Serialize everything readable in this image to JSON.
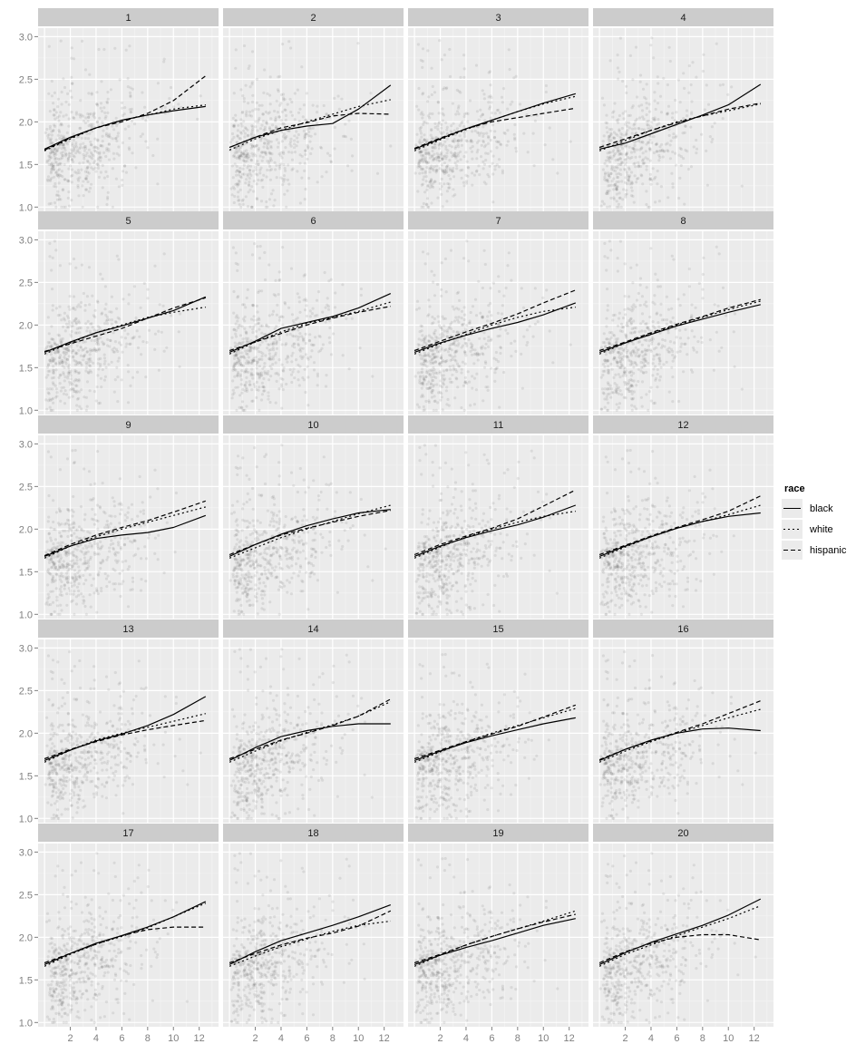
{
  "chart_data": {
    "type": "scatter",
    "facets": [
      "1",
      "2",
      "3",
      "4",
      "5",
      "6",
      "7",
      "8",
      "9",
      "10",
      "11",
      "12",
      "13",
      "14",
      "15",
      "16",
      "17",
      "18",
      "19",
      "20"
    ],
    "xlim": [
      -0.5,
      13.5
    ],
    "ylim": [
      0.95,
      3.1
    ],
    "x_ticks": [
      2,
      4,
      6,
      8,
      10,
      12
    ],
    "y_ticks": [
      "1.0",
      "1.5",
      "2.0",
      "2.5",
      "3.0"
    ],
    "grid": true,
    "legend": {
      "title": "race",
      "position": "right",
      "entries": [
        {
          "name": "black",
          "linetype": "solid"
        },
        {
          "name": "white",
          "linetype": "dotted"
        },
        {
          "name": "hispanic",
          "linetype": "dashed"
        }
      ]
    },
    "points": {
      "x_range": [
        0,
        12.5
      ],
      "y_range": [
        1.0,
        3.0
      ],
      "color": "#000000",
      "alpha": 0.08
    },
    "smooth_x": [
      0,
      2,
      4,
      6,
      8,
      10,
      12.5
    ],
    "panels": [
      {
        "facet": "1",
        "black": [
          1.68,
          1.82,
          1.93,
          2.02,
          2.08,
          2.13,
          2.18
        ],
        "white": [
          1.66,
          1.8,
          1.93,
          2.02,
          2.08,
          2.15,
          2.2
        ],
        "hispanic": [
          1.67,
          1.81,
          1.93,
          2.0,
          2.1,
          2.25,
          2.54
        ]
      },
      {
        "facet": "2",
        "black": [
          1.7,
          1.82,
          1.9,
          1.95,
          1.98,
          2.15,
          2.43
        ],
        "white": [
          1.67,
          1.8,
          1.9,
          2.0,
          2.09,
          2.18,
          2.26
        ],
        "hispanic": [
          1.7,
          1.82,
          1.93,
          1.99,
          2.07,
          2.1,
          2.09
        ]
      },
      {
        "facet": "3",
        "black": [
          1.68,
          1.8,
          1.92,
          2.02,
          2.12,
          2.22,
          2.33
        ],
        "white": [
          1.66,
          1.79,
          1.91,
          2.02,
          2.12,
          2.21,
          2.3
        ],
        "hispanic": [
          1.69,
          1.81,
          1.92,
          2.0,
          2.05,
          2.1,
          2.16
        ]
      },
      {
        "facet": "4",
        "black": [
          1.68,
          1.75,
          1.86,
          1.97,
          2.08,
          2.2,
          2.44
        ],
        "white": [
          1.66,
          1.78,
          1.9,
          2.0,
          2.07,
          2.13,
          2.21
        ],
        "hispanic": [
          1.7,
          1.8,
          1.9,
          1.99,
          2.07,
          2.15,
          2.22
        ]
      },
      {
        "facet": "5",
        "black": [
          1.68,
          1.8,
          1.91,
          1.99,
          2.08,
          2.17,
          2.33
        ],
        "white": [
          1.66,
          1.79,
          1.91,
          2.0,
          2.09,
          2.15,
          2.21
        ],
        "hispanic": [
          1.69,
          1.78,
          1.87,
          1.96,
          2.08,
          2.2,
          2.32
        ]
      },
      {
        "facet": "6",
        "black": [
          1.68,
          1.81,
          1.96,
          2.03,
          2.1,
          2.2,
          2.37
        ],
        "white": [
          1.66,
          1.8,
          1.92,
          2.02,
          2.09,
          2.16,
          2.27
        ],
        "hispanic": [
          1.7,
          1.8,
          1.9,
          2.0,
          2.08,
          2.15,
          2.22
        ]
      },
      {
        "facet": "7",
        "black": [
          1.68,
          1.79,
          1.88,
          1.96,
          2.03,
          2.12,
          2.26
        ],
        "white": [
          1.66,
          1.78,
          1.89,
          2.0,
          2.09,
          2.16,
          2.21
        ],
        "hispanic": [
          1.7,
          1.81,
          1.92,
          2.02,
          2.13,
          2.26,
          2.41
        ]
      },
      {
        "facet": "8",
        "black": [
          1.68,
          1.79,
          1.89,
          1.99,
          2.07,
          2.15,
          2.24
        ],
        "white": [
          1.66,
          1.79,
          1.9,
          2.0,
          2.09,
          2.18,
          2.28
        ],
        "hispanic": [
          1.7,
          1.8,
          1.91,
          2.01,
          2.1,
          2.2,
          2.3
        ]
      },
      {
        "facet": "9",
        "black": [
          1.68,
          1.8,
          1.89,
          1.93,
          1.96,
          2.02,
          2.16
        ],
        "white": [
          1.66,
          1.8,
          1.91,
          2.0,
          2.08,
          2.16,
          2.26
        ],
        "hispanic": [
          1.69,
          1.82,
          1.93,
          2.02,
          2.1,
          2.2,
          2.33
        ]
      },
      {
        "facet": "10",
        "black": [
          1.68,
          1.82,
          1.94,
          2.04,
          2.12,
          2.19,
          2.23
        ],
        "white": [
          1.66,
          1.78,
          1.9,
          2.0,
          2.09,
          2.18,
          2.28
        ],
        "hispanic": [
          1.7,
          1.82,
          1.93,
          2.01,
          2.08,
          2.15,
          2.22
        ]
      },
      {
        "facet": "11",
        "black": [
          1.68,
          1.8,
          1.9,
          1.98,
          2.05,
          2.14,
          2.28
        ],
        "white": [
          1.66,
          1.79,
          1.91,
          2.0,
          2.08,
          2.15,
          2.21
        ],
        "hispanic": [
          1.7,
          1.82,
          1.92,
          2.01,
          2.12,
          2.27,
          2.46
        ]
      },
      {
        "facet": "12",
        "black": [
          1.68,
          1.8,
          1.91,
          2.01,
          2.09,
          2.15,
          2.19
        ],
        "white": [
          1.66,
          1.79,
          1.91,
          2.01,
          2.09,
          2.17,
          2.28
        ],
        "hispanic": [
          1.7,
          1.81,
          1.92,
          2.02,
          2.11,
          2.21,
          2.39
        ]
      },
      {
        "facet": "13",
        "black": [
          1.68,
          1.8,
          1.91,
          1.99,
          2.09,
          2.22,
          2.43
        ],
        "white": [
          1.66,
          1.8,
          1.92,
          2.0,
          2.07,
          2.14,
          2.23
        ],
        "hispanic": [
          1.7,
          1.81,
          1.9,
          1.98,
          2.04,
          2.09,
          2.15
        ]
      },
      {
        "facet": "14",
        "black": [
          1.68,
          1.83,
          1.96,
          2.03,
          2.08,
          2.11,
          2.11
        ],
        "white": [
          1.66,
          1.79,
          1.91,
          2.01,
          2.1,
          2.2,
          2.37
        ],
        "hispanic": [
          1.7,
          1.81,
          1.92,
          2.0,
          2.09,
          2.2,
          2.4
        ]
      },
      {
        "facet": "15",
        "black": [
          1.68,
          1.79,
          1.89,
          1.97,
          2.04,
          2.11,
          2.18
        ],
        "white": [
          1.66,
          1.78,
          1.9,
          2.0,
          2.09,
          2.18,
          2.29
        ],
        "hispanic": [
          1.7,
          1.8,
          1.9,
          1.99,
          2.08,
          2.19,
          2.33
        ]
      },
      {
        "facet": "16",
        "black": [
          1.68,
          1.81,
          1.92,
          2.0,
          2.05,
          2.06,
          2.03
        ],
        "white": [
          1.66,
          1.79,
          1.9,
          2.0,
          2.09,
          2.18,
          2.28
        ],
        "hispanic": [
          1.69,
          1.81,
          1.91,
          2.01,
          2.11,
          2.23,
          2.38
        ]
      },
      {
        "facet": "17",
        "black": [
          1.68,
          1.81,
          1.93,
          2.02,
          2.12,
          2.24,
          2.42
        ],
        "white": [
          1.66,
          1.8,
          1.92,
          2.01,
          2.11,
          2.24,
          2.4
        ],
        "hispanic": [
          1.7,
          1.81,
          1.92,
          2.02,
          2.09,
          2.12,
          2.12
        ]
      },
      {
        "facet": "18",
        "black": [
          1.68,
          1.83,
          1.96,
          2.05,
          2.14,
          2.24,
          2.38
        ],
        "white": [
          1.66,
          1.78,
          1.89,
          1.98,
          2.07,
          2.14,
          2.19
        ],
        "hispanic": [
          1.7,
          1.81,
          1.91,
          1.99,
          2.05,
          2.13,
          2.31
        ]
      },
      {
        "facet": "19",
        "black": [
          1.68,
          1.79,
          1.88,
          1.96,
          2.05,
          2.14,
          2.22
        ],
        "white": [
          1.66,
          1.79,
          1.91,
          2.01,
          2.1,
          2.19,
          2.31
        ],
        "hispanic": [
          1.7,
          1.8,
          1.91,
          2.01,
          2.1,
          2.18,
          2.27
        ]
      },
      {
        "facet": "20",
        "black": [
          1.68,
          1.82,
          1.94,
          2.04,
          2.14,
          2.26,
          2.45
        ],
        "white": [
          1.66,
          1.8,
          1.91,
          2.02,
          2.12,
          2.22,
          2.37
        ],
        "hispanic": [
          1.7,
          1.83,
          1.93,
          2.0,
          2.03,
          2.03,
          1.97
        ]
      }
    ]
  }
}
